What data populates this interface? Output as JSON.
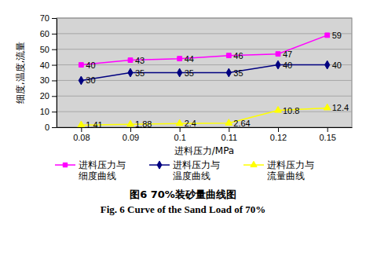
{
  "chart_data": {
    "type": "line",
    "title": "图6 70%装砂量曲线图",
    "subtitle": "Fig. 6 Curve of the Sand Load of 70%",
    "x_label": "进料压力/MPa",
    "y_label": "细度,温度,流量",
    "categories": [
      "0.08",
      "0.09",
      "0.1",
      "0.11",
      "0.12",
      "0.15"
    ],
    "series": [
      {
        "name": "进料压力与细度曲线",
        "color": "#ff00ff",
        "marker": "square",
        "values": [
          40,
          43,
          44,
          46,
          47,
          59
        ]
      },
      {
        "name": "进料压力与温度曲线",
        "color": "#000080",
        "marker": "diamond",
        "values": [
          30,
          35,
          35,
          35,
          40,
          40
        ]
      },
      {
        "name": "进料压力与流量曲线",
        "color": "#ffff00",
        "marker": "triangle",
        "values": [
          1.41,
          1.88,
          2.4,
          2.64,
          10.8,
          12.4
        ]
      }
    ],
    "ylim": [
      0,
      70
    ],
    "yticks": [
      0,
      10,
      20,
      30,
      40,
      50,
      60,
      70
    ],
    "grid": true,
    "legend": "bottom",
    "data_labels": true
  }
}
